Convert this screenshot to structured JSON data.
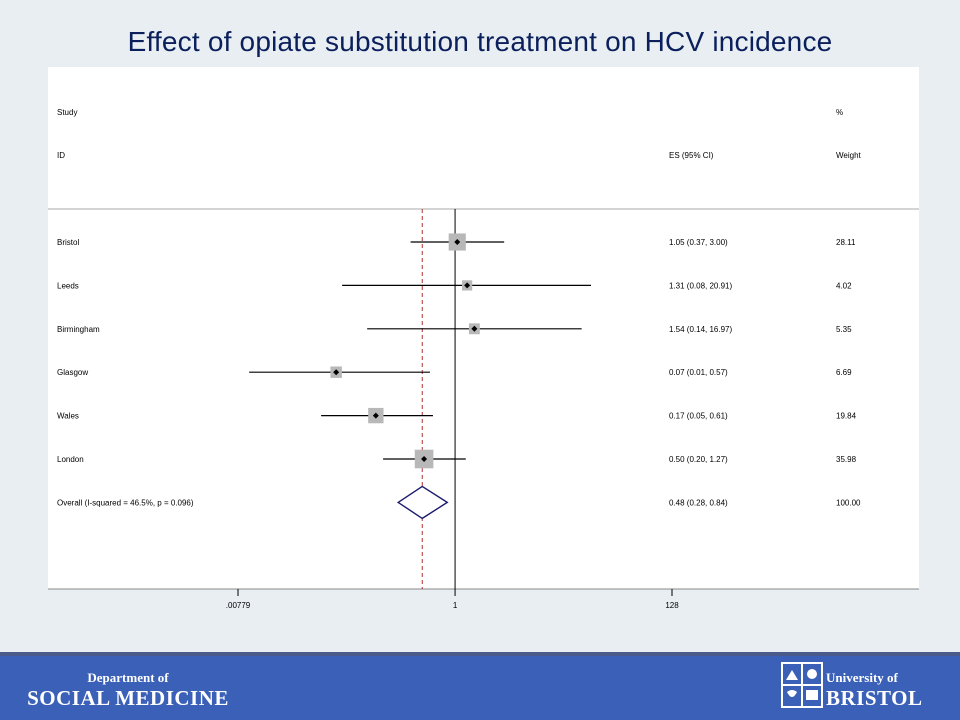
{
  "slide": {
    "title": "Effect of opiate substitution treatment on HCV incidence"
  },
  "footer": {
    "department_of": "Department of",
    "department_name": "SOCIAL MEDICINE",
    "university_of": "University of",
    "university_name": "BRISTOL",
    "crest_icon": "bristol-crest-icon"
  },
  "colors": {
    "title": "#0a1f5c",
    "footer": "#3a60b8",
    "diamond": "#1a1a6e",
    "dashed_line": "#b03030"
  },
  "chart_data": {
    "type": "forest",
    "header": {
      "study_line1": "Study",
      "study_line2": "ID",
      "es_label": "ES (95% CI)",
      "weight_line1": "%",
      "weight_line2": "Weight"
    },
    "x_scale": "log",
    "xlim": [
      0.00779,
      128
    ],
    "x_ticks": [
      {
        "value": 0.00779,
        "label": ".00779"
      },
      {
        "value": 1,
        "label": "1"
      },
      {
        "value": 128,
        "label": "128"
      }
    ],
    "null_line": 1,
    "studies": [
      {
        "name": "Bristol",
        "es": 1.05,
        "lo": 0.37,
        "hi": 3.0,
        "weight": 28.11,
        "es_text": "1.05 (0.37, 3.00)",
        "weight_text": "28.11"
      },
      {
        "name": "Leeds",
        "es": 1.31,
        "lo": 0.08,
        "hi": 20.91,
        "weight": 4.02,
        "es_text": "1.31 (0.08, 20.91)",
        "weight_text": "4.02"
      },
      {
        "name": "Birmingham",
        "es": 1.54,
        "lo": 0.14,
        "hi": 16.97,
        "weight": 5.35,
        "es_text": "1.54 (0.14, 16.97)",
        "weight_text": "5.35"
      },
      {
        "name": "Glasgow",
        "es": 0.07,
        "lo": 0.01,
        "hi": 0.57,
        "weight": 6.69,
        "es_text": "0.07 (0.01, 0.57)",
        "weight_text": "6.69"
      },
      {
        "name": "Wales",
        "es": 0.17,
        "lo": 0.05,
        "hi": 0.61,
        "weight": 19.84,
        "es_text": "0.17 (0.05, 0.61)",
        "weight_text": "19.84"
      },
      {
        "name": "London",
        "es": 0.5,
        "lo": 0.2,
        "hi": 1.27,
        "weight": 35.98,
        "es_text": "0.50 (0.20, 1.27)",
        "weight_text": "35.98"
      }
    ],
    "overall": {
      "name": "Overall  (I-squared = 46.5%, p = 0.096)",
      "es": 0.48,
      "lo": 0.28,
      "hi": 0.84,
      "es_text": "0.48 (0.28, 0.84)",
      "weight_text": "100.00"
    }
  }
}
